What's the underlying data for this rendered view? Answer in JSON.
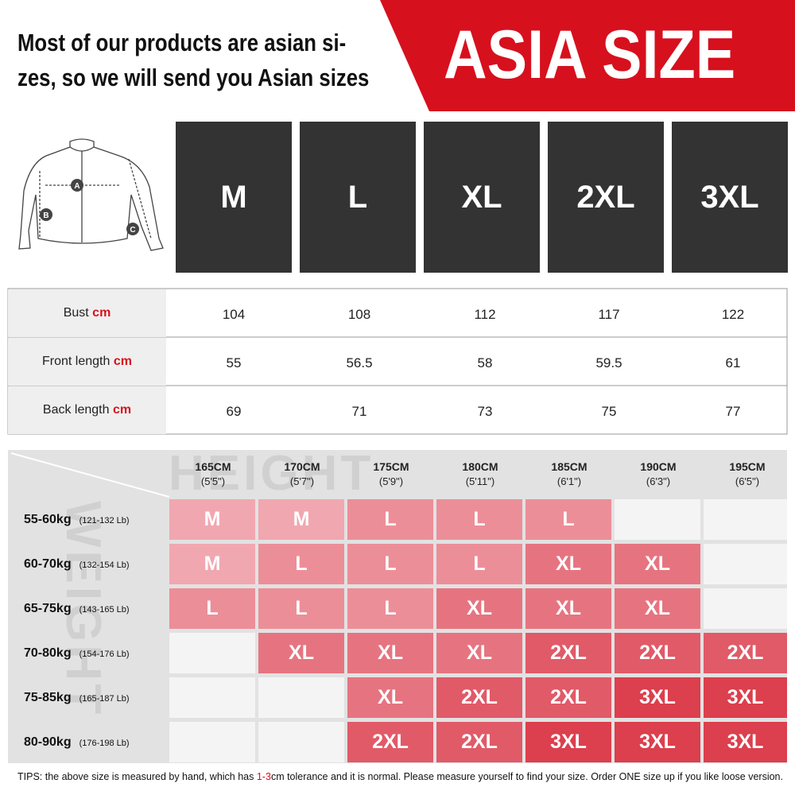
{
  "header": {
    "line1": "Most of our products are asian si-",
    "line2": "zes, so we will send you Asian sizes",
    "banner": "ASIA SIZE"
  },
  "illustration": {
    "labels": [
      "A",
      "B",
      "C"
    ]
  },
  "sizes": [
    "M",
    "L",
    "XL",
    "2XL",
    "3XL"
  ],
  "measurements": {
    "rows": [
      {
        "label": "Bust",
        "unit": "cm",
        "values": [
          104,
          108,
          112,
          117,
          122
        ]
      },
      {
        "label": "Front length",
        "unit": "cm",
        "values": [
          55,
          56.5,
          58,
          59.5,
          61
        ]
      },
      {
        "label": "Back length",
        "unit": "cm",
        "values": [
          69,
          71,
          73,
          75,
          77
        ]
      }
    ]
  },
  "size_chart": {
    "watermark_height": "HEIGHT",
    "watermark_weight": "WEIGHT",
    "heights": [
      {
        "cm": "165CM",
        "ft": "(5'5\")"
      },
      {
        "cm": "170CM",
        "ft": "(5'7\")"
      },
      {
        "cm": "175CM",
        "ft": "(5'9\")"
      },
      {
        "cm": "180CM",
        "ft": "(5'11\")"
      },
      {
        "cm": "185CM",
        "ft": "(6'1\")"
      },
      {
        "cm": "190CM",
        "ft": "(6'3\")"
      },
      {
        "cm": "195CM",
        "ft": "(6'5\")"
      }
    ],
    "rows": [
      {
        "weight": "55-60kg",
        "lb": "(121-132 Lb)",
        "cells": [
          "M",
          "M",
          "L",
          "L",
          "L",
          null,
          null
        ]
      },
      {
        "weight": "60-70kg",
        "lb": "(132-154 Lb)",
        "cells": [
          "M",
          "L",
          "L",
          "L",
          "XL",
          "XL",
          null
        ]
      },
      {
        "weight": "65-75kg",
        "lb": "(143-165 Lb)",
        "cells": [
          "L",
          "L",
          "L",
          "XL",
          "XL",
          "XL",
          null
        ]
      },
      {
        "weight": "70-80kg",
        "lb": "(154-176 Lb)",
        "cells": [
          null,
          "XL",
          "XL",
          "XL",
          "2XL",
          "2XL",
          "2XL"
        ]
      },
      {
        "weight": "75-85kg",
        "lb": "(165-187 Lb)",
        "cells": [
          null,
          null,
          "XL",
          "2XL",
          "2XL",
          "3XL",
          "3XL"
        ]
      },
      {
        "weight": "80-90kg",
        "lb": "(176-198 Lb)",
        "cells": [
          null,
          null,
          "2XL",
          "2XL",
          "3XL",
          "3XL",
          "3XL"
        ]
      }
    ]
  },
  "tips": {
    "prefix": "TIPS:  the above size is measured by hand, which has ",
    "highlight": "1-3",
    "suffix": "cm tolerance and it is normal. Please measure yourself to find your size. Order ONE size up if you like loose version."
  }
}
